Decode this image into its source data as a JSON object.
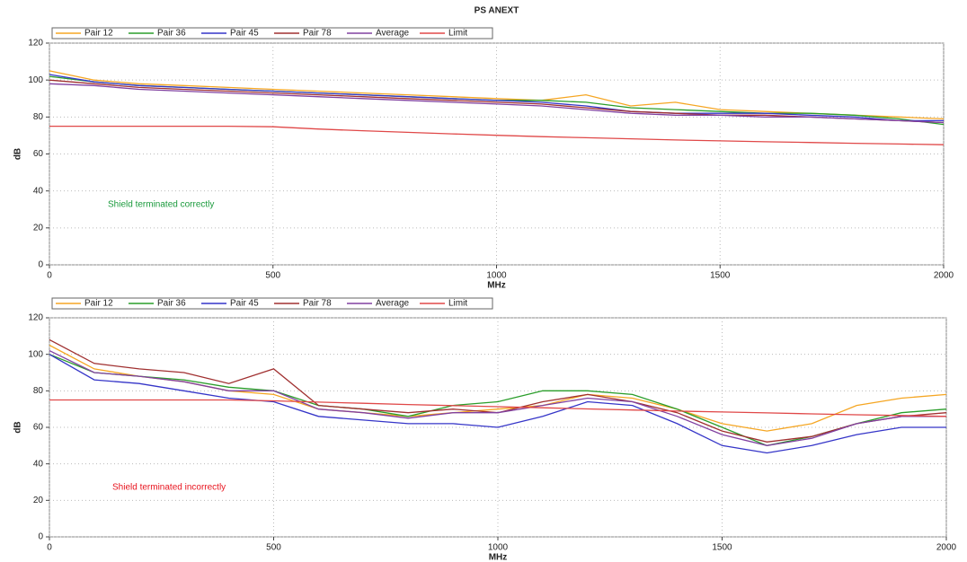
{
  "chart_data": [
    {
      "type": "line",
      "title": "PS ANEXT",
      "xlabel": "MHz",
      "ylabel": "dB",
      "annotation": "Shield terminated correctly",
      "annotation_color": "#1a9a3c",
      "x": [
        0,
        100,
        200,
        300,
        400,
        500,
        600,
        700,
        800,
        900,
        1000,
        1100,
        1200,
        1300,
        1400,
        1500,
        1600,
        1700,
        1800,
        1900,
        2000
      ],
      "xlim": [
        0,
        2000
      ],
      "ylim": [
        0,
        120
      ],
      "xticks": [
        0,
        500,
        1000,
        1500,
        2000
      ],
      "yticks": [
        0,
        20,
        40,
        60,
        80,
        100,
        120
      ],
      "grid": true,
      "series": [
        {
          "name": "Pair 12",
          "color": "#f5a623",
          "values": [
            105,
            100,
            98,
            97,
            96,
            95,
            94,
            93,
            92,
            91,
            90,
            89,
            92,
            86,
            88,
            84,
            83,
            82,
            81,
            80,
            79
          ]
        },
        {
          "name": "Pair 36",
          "color": "#2a9d2a",
          "values": [
            102,
            99,
            97,
            96,
            95,
            94,
            93,
            92,
            91,
            90,
            89,
            89,
            88,
            85,
            84,
            83,
            82,
            82,
            81,
            79,
            76
          ]
        },
        {
          "name": "Pair 45",
          "color": "#3535c8",
          "values": [
            103,
            99,
            97,
            96,
            95,
            94,
            93,
            92,
            91,
            90,
            89,
            88,
            86,
            83,
            82,
            82,
            82,
            81,
            80,
            78,
            78
          ]
        },
        {
          "name": "Pair 78",
          "color": "#a03030",
          "values": [
            100,
            98,
            96,
            95,
            94,
            93,
            92,
            91,
            90,
            89,
            88,
            87,
            85,
            83,
            82,
            81,
            81,
            80,
            79,
            78,
            77
          ]
        },
        {
          "name": "Average",
          "color": "#8040a0",
          "values": [
            98,
            97,
            95,
            94,
            93,
            92,
            91,
            90,
            89,
            88,
            87,
            86,
            84,
            82,
            81,
            81,
            80,
            80,
            79,
            78,
            77
          ]
        },
        {
          "name": "Limit",
          "color": "#e04848",
          "values": [
            75,
            75,
            75,
            75,
            75,
            74.7,
            73.5,
            72.6,
            71.7,
            70.9,
            70.1,
            69.4,
            68.8,
            68.2,
            67.6,
            67.1,
            66.6,
            66.2,
            65.8,
            65.4,
            65
          ]
        }
      ]
    },
    {
      "type": "line",
      "xlabel": "MHz",
      "ylabel": "dB",
      "annotation": "Shield terminated incorrectly",
      "annotation_color": "#e8141e",
      "x": [
        0,
        100,
        200,
        300,
        400,
        500,
        600,
        700,
        800,
        900,
        1000,
        1100,
        1200,
        1300,
        1400,
        1500,
        1600,
        1700,
        1800,
        1900,
        2000
      ],
      "xlim": [
        0,
        2000
      ],
      "ylim": [
        0,
        120
      ],
      "xticks": [
        0,
        500,
        1000,
        1500,
        2000
      ],
      "yticks": [
        0,
        20,
        40,
        60,
        80,
        100,
        120
      ],
      "grid": true,
      "series": [
        {
          "name": "Pair 12",
          "color": "#f5a623",
          "values": [
            105,
            92,
            88,
            85,
            80,
            78,
            70,
            68,
            66,
            68,
            70,
            72,
            78,
            76,
            70,
            62,
            58,
            62,
            72,
            76,
            78
          ]
        },
        {
          "name": "Pair 36",
          "color": "#2a9d2a",
          "values": [
            100,
            90,
            88,
            86,
            82,
            80,
            72,
            70,
            66,
            72,
            74,
            80,
            80,
            78,
            70,
            60,
            50,
            55,
            62,
            68,
            70
          ]
        },
        {
          "name": "Pair 45",
          "color": "#3535c8",
          "values": [
            100,
            86,
            84,
            80,
            76,
            74,
            66,
            64,
            62,
            62,
            60,
            66,
            74,
            72,
            62,
            50,
            46,
            50,
            56,
            60,
            60
          ]
        },
        {
          "name": "Pair 78",
          "color": "#a03030",
          "values": [
            108,
            95,
            92,
            90,
            84,
            92,
            72,
            70,
            68,
            70,
            68,
            74,
            78,
            74,
            68,
            58,
            52,
            55,
            62,
            66,
            68
          ]
        },
        {
          "name": "Average",
          "color": "#8040a0",
          "values": [
            102,
            90,
            88,
            85,
            80,
            80,
            70,
            68,
            65,
            68,
            68,
            72,
            76,
            74,
            66,
            56,
            50,
            54,
            62,
            66,
            66
          ]
        },
        {
          "name": "Limit",
          "color": "#e04848",
          "values": [
            75,
            75,
            75,
            75,
            75,
            74.5,
            73.8,
            73.2,
            72.5,
            71.9,
            71.3,
            70.7,
            70.1,
            69.5,
            68.9,
            68.4,
            67.9,
            67.4,
            66.9,
            66.5,
            66
          ]
        }
      ]
    }
  ]
}
